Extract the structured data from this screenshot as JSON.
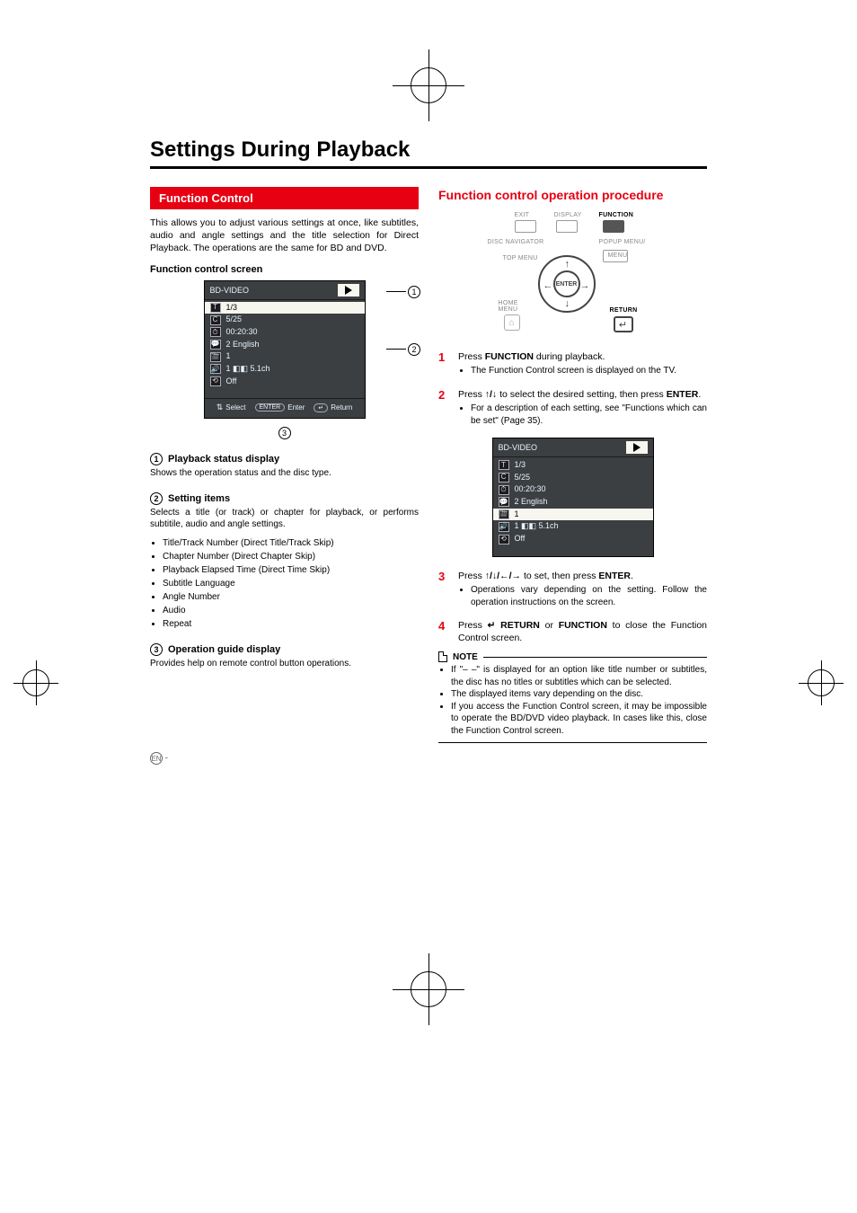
{
  "page_title": "Settings During Playback",
  "left": {
    "banner": "Function Control",
    "intro": "This allows you to adjust various settings at once, like subtitles, audio and angle settings and the title selection for Direct Playback. The operations are the same for BD and DVD.",
    "screen_label": "Function control screen",
    "osd": {
      "header": "BD-VIDEO",
      "rows": [
        {
          "icon": "T",
          "text": "1/3",
          "hl": true
        },
        {
          "icon": "C",
          "text": "5/25"
        },
        {
          "icon": "⏱",
          "text": "00:20:30"
        },
        {
          "icon": "💬",
          "text": "2 English"
        },
        {
          "icon": "🎬",
          "text": "1"
        },
        {
          "icon": "🔊",
          "text": "1  ◧◧  5.1ch"
        },
        {
          "icon": "⟲",
          "text": "Off"
        }
      ],
      "guide_select": "Select",
      "guide_enter": "Enter",
      "guide_enter_pill": "ENTER",
      "guide_return": "Return",
      "guide_return_sym": "↵"
    },
    "items": [
      {
        "num": "1",
        "title": "Playback status display",
        "desc": "Shows the operation status and the disc type."
      },
      {
        "num": "2",
        "title": "Setting items",
        "desc": "Selects a title (or track) or chapter for playback, or performs subtitile, audio and angle settings.",
        "bullets": [
          "Title/Track Number (Direct Title/Track Skip)",
          "Chapter Number (Direct Chapter Skip)",
          "Playback Elapsed Time (Direct Time Skip)",
          "Subtitle Language",
          "Angle Number",
          "Audio",
          "Repeat"
        ]
      },
      {
        "num": "3",
        "title": "Operation guide display",
        "desc": "Provides help on remote control button operations."
      }
    ]
  },
  "right": {
    "sub": "Function control operation procedure",
    "remote": {
      "exit": "EXIT",
      "display": "DISPLAY",
      "function": "FUNCTION",
      "disc_nav": "DISC NAVIGATOR",
      "popup": "POPUP MENU/",
      "menu": "MENU",
      "topmenu": "TOP MENU",
      "enter": "ENTER",
      "home": "HOME",
      "home2": "MENU",
      "return": "RETURN"
    },
    "steps": [
      {
        "n": "1",
        "html": "Press <b>FUNCTION</b> during playback.",
        "subs": [
          "The Function Control screen is displayed on the TV."
        ]
      },
      {
        "n": "2",
        "html": "Press <span class='arrows'>↑/↓</span> to select the desired setting, then press <b>ENTER</b>.",
        "subs": [
          "For a description of each setting, see \"Functions which can be set\" (Page 35)."
        ]
      },
      {
        "n": "3",
        "html": "Press <span class='arrows'>↑/↓/←/→</span> to set, then press <b>ENTER</b>.",
        "subs": [
          "Operations vary depending on the setting. Follow the operation instructions on the screen."
        ]
      },
      {
        "n": "4",
        "html": "Press <span class='arrows'>↵</span> <b>RETURN</b> or <b>FUNCTION</b> to close the Function Control screen."
      }
    ],
    "osd2": {
      "header": "BD-VIDEO",
      "rows": [
        {
          "icon": "T",
          "text": "1/3"
        },
        {
          "icon": "C",
          "text": "5/25"
        },
        {
          "icon": "⏱",
          "text": "00:20:30"
        },
        {
          "icon": "💬",
          "text": "2 English"
        },
        {
          "icon": "🎬",
          "text": "1",
          "hl": true
        },
        {
          "icon": "🔊",
          "text": "1  ◧◧  5.1ch"
        },
        {
          "icon": "⟲",
          "text": "Off"
        }
      ]
    },
    "note_label": "NOTE",
    "notes": [
      "If \"– –\" is displayed for an option like title number or subtitles, the disc has no titles or subtitles which can be selected.",
      "The displayed items vary depending on the disc.",
      "If you access the Function Control screen, it may be impossible to operate the BD/DVD video playback. In cases like this, close the Function Control screen."
    ]
  },
  "footer_lang": "EN",
  "footer_dash": "-",
  "colors": {
    "accent": "#e60012",
    "osd_bg": "#3c3f41",
    "osd_text": "#e6f3ff",
    "osd_hl_bg": "#f7f7f0"
  }
}
